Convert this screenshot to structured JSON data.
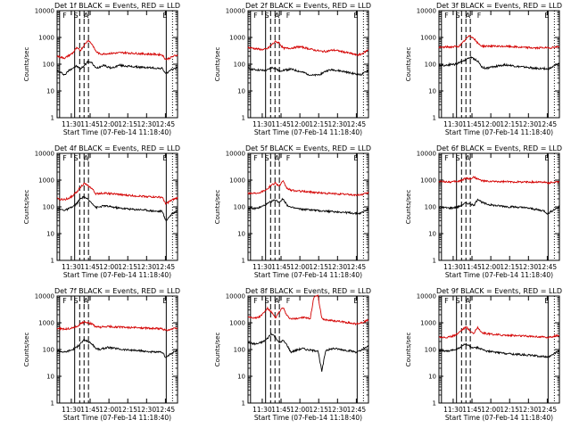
{
  "chart_data": [
    {
      "type": "line",
      "title": "Det 1f BLACK = Events, RED = LLD",
      "xlabel": "Start Time (07-Feb-14 11:18:40)",
      "ylabel": "Counts/sec",
      "yscale": "log",
      "ylim": [
        1,
        10000
      ],
      "ytick_labels": [
        "1",
        "10",
        "100",
        "1000",
        "10000"
      ],
      "xticks": [
        "11:30",
        "11:45",
        "12:00",
        "12:15",
        "12:30",
        "12:45"
      ],
      "series": [
        {
          "color": "#000000",
          "values": [
            55,
            48,
            40,
            58,
            72,
            85,
            65,
            90,
            130,
            110,
            70,
            80,
            95,
            78,
            72,
            80,
            92,
            88,
            85,
            82,
            80,
            78,
            76,
            75,
            74,
            72,
            70,
            70,
            45,
            55,
            68,
            75
          ]
        },
        {
          "color": "#d40000",
          "values": [
            200,
            180,
            170,
            210,
            260,
            400,
            330,
            520,
            800,
            560,
            300,
            240,
            245,
            250,
            255,
            260,
            265,
            270,
            265,
            260,
            255,
            250,
            245,
            240,
            238,
            235,
            230,
            225,
            150,
            170,
            200,
            220
          ]
        }
      ],
      "flags": [
        "F",
        "S",
        "A",
        "E"
      ]
    },
    {
      "type": "line",
      "title": "Det 2f BLACK = Events, RED = LLD",
      "xlabel": "Start Time (07-Feb-14 11:18:40)",
      "ylabel": "Counts/sec",
      "yscale": "log",
      "ylim": [
        1,
        10000
      ],
      "ytick_labels": [
        "1",
        "10",
        "100",
        "1000",
        "10000"
      ],
      "xticks": [
        "11:30",
        "11:45",
        "12:00",
        "12:15",
        "12:30",
        "12:45"
      ],
      "series": [
        {
          "color": "#000000",
          "values": [
            70,
            65,
            62,
            60,
            58,
            60,
            75,
            70,
            55,
            60,
            62,
            65,
            60,
            55,
            50,
            45,
            40,
            38,
            40,
            45,
            55,
            60,
            62,
            58,
            55,
            52,
            48,
            45,
            42,
            40,
            48,
            60
          ]
        },
        {
          "color": "#d40000",
          "values": [
            420,
            400,
            380,
            360,
            350,
            380,
            520,
            700,
            640,
            400,
            390,
            400,
            420,
            450,
            430,
            400,
            370,
            340,
            320,
            300,
            300,
            320,
            340,
            320,
            300,
            280,
            260,
            240,
            220,
            230,
            280,
            350
          ]
        }
      ],
      "flags": [
        "F",
        "S",
        "A",
        "F",
        "E"
      ]
    },
    {
      "type": "line",
      "title": "Det 3f BLACK = Events, RED = LLD",
      "xlabel": "Start Time (07-Feb-14 11:18:40)",
      "ylabel": "Counts/sec",
      "yscale": "log",
      "ylim": [
        1,
        10000
      ],
      "ytick_labels": [
        "1",
        "10",
        "100",
        "1000",
        "10000"
      ],
      "xticks": [
        "11:30",
        "11:45",
        "12:00",
        "12:15",
        "12:30",
        "12:45"
      ],
      "series": [
        {
          "color": "#000000",
          "values": [
            95,
            90,
            92,
            100,
            98,
            110,
            130,
            150,
            180,
            160,
            130,
            80,
            70,
            75,
            80,
            85,
            90,
            95,
            92,
            88,
            82,
            80,
            78,
            75,
            72,
            70,
            68,
            70,
            65,
            75,
            90,
            110
          ]
        },
        {
          "color": "#d40000",
          "values": [
            420,
            430,
            440,
            440,
            450,
            460,
            600,
            900,
            1200,
            900,
            600,
            480,
            470,
            480,
            470,
            460,
            460,
            470,
            460,
            450,
            440,
            430,
            420,
            420,
            410,
            400,
            410,
            420,
            400,
            420,
            440,
            460
          ]
        }
      ],
      "flags": [
        "F",
        "S",
        "A",
        "F",
        "E"
      ]
    },
    {
      "type": "line",
      "title": "Det 4f BLACK = Events, RED = LLD",
      "xlabel": "Start Time (07-Feb-14 11:18:40)",
      "ylabel": "Counts/sec",
      "yscale": "log",
      "ylim": [
        1,
        10000
      ],
      "ytick_labels": [
        "1",
        "10",
        "100",
        "1000",
        "10000"
      ],
      "xticks": [
        "11:30",
        "11:45",
        "12:00",
        "12:15",
        "12:30",
        "12:45"
      ],
      "series": [
        {
          "color": "#000000",
          "values": [
            85,
            80,
            75,
            85,
            100,
            130,
            200,
            240,
            180,
            140,
            95,
            100,
            110,
            105,
            100,
            95,
            90,
            88,
            85,
            82,
            80,
            80,
            78,
            75,
            72,
            70,
            68,
            70,
            30,
            45,
            60,
            75
          ]
        },
        {
          "color": "#d40000",
          "values": [
            200,
            190,
            190,
            210,
            260,
            350,
            550,
            750,
            600,
            480,
            300,
            320,
            330,
            320,
            310,
            300,
            290,
            280,
            270,
            265,
            260,
            255,
            250,
            245,
            240,
            235,
            230,
            230,
            130,
            160,
            190,
            220
          ]
        }
      ],
      "flags": [
        "F",
        "S",
        "A",
        "E"
      ]
    },
    {
      "type": "line",
      "title": "Det 5f BLACK = Events, RED = LLD",
      "xlabel": "Start Time (07-Feb-14 11:18:40)",
      "ylabel": "Counts/sec",
      "yscale": "log",
      "ylim": [
        1,
        10000
      ],
      "ytick_labels": [
        "1",
        "10",
        "100",
        "1000",
        "10000"
      ],
      "xticks": [
        "11:30",
        "11:45",
        "12:00",
        "12:15",
        "12:30",
        "12:45"
      ],
      "series": [
        {
          "color": "#000000",
          "values": [
            90,
            85,
            88,
            95,
            110,
            130,
            160,
            180,
            150,
            200,
            120,
            95,
            90,
            85,
            80,
            80,
            78,
            75,
            72,
            70,
            70,
            68,
            66,
            65,
            64,
            62,
            60,
            58,
            56,
            58,
            70,
            85
          ]
        },
        {
          "color": "#d40000",
          "values": [
            330,
            320,
            330,
            350,
            400,
            480,
            650,
            800,
            600,
            900,
            500,
            420,
            400,
            390,
            380,
            370,
            360,
            350,
            340,
            330,
            320,
            315,
            310,
            305,
            300,
            295,
            290,
            280,
            275,
            285,
            310,
            330
          ]
        }
      ],
      "flags": [
        "F",
        "S",
        "A",
        "F",
        "E"
      ]
    },
    {
      "type": "line",
      "title": "Det 6f BLACK = Events, RED = LLD",
      "xlabel": "Start Time (07-Feb-14 11:18:40)",
      "ylabel": "Counts/sec",
      "yscale": "log",
      "ylim": [
        1,
        10000
      ],
      "ytick_labels": [
        "1",
        "10",
        "100",
        "1000",
        "10000"
      ],
      "xticks": [
        "11:30",
        "11:45",
        "12:00",
        "12:15",
        "12:30",
        "12:45"
      ],
      "series": [
        {
          "color": "#000000",
          "values": [
            100,
            95,
            92,
            90,
            95,
            100,
            120,
            140,
            130,
            110,
            200,
            150,
            130,
            120,
            115,
            110,
            108,
            105,
            100,
            100,
            98,
            95,
            92,
            90,
            85,
            80,
            75,
            72,
            55,
            70,
            85,
            100
          ]
        },
        {
          "color": "#d40000",
          "values": [
            900,
            880,
            870,
            860,
            870,
            900,
            1000,
            1200,
            1100,
            1300,
            1100,
            950,
            900,
            890,
            880,
            880,
            870,
            870,
            860,
            860,
            860,
            860,
            850,
            850,
            850,
            850,
            850,
            840,
            780,
            820,
            840,
            850
          ]
        }
      ],
      "flags": [
        "F",
        "S",
        "A",
        "E"
      ]
    },
    {
      "type": "line",
      "title": "Det 7f BLACK = Events, RED = LLD",
      "xlabel": "Start Time (07-Feb-14 11:18:40)",
      "ylabel": "Counts/sec",
      "yscale": "log",
      "ylim": [
        1,
        10000
      ],
      "ytick_labels": [
        "1",
        "10",
        "100",
        "1000",
        "10000"
      ],
      "xticks": [
        "11:30",
        "11:45",
        "12:00",
        "12:15",
        "12:30",
        "12:45"
      ],
      "series": [
        {
          "color": "#000000",
          "values": [
            90,
            85,
            80,
            90,
            100,
            120,
            170,
            230,
            200,
            160,
            110,
            100,
            110,
            120,
            115,
            110,
            105,
            100,
            98,
            95,
            92,
            90,
            88,
            85,
            82,
            80,
            78,
            80,
            50,
            65,
            80,
            95
          ]
        },
        {
          "color": "#d40000",
          "values": [
            620,
            600,
            580,
            600,
            650,
            720,
            900,
            1100,
            1000,
            900,
            700,
            680,
            700,
            720,
            710,
            700,
            690,
            680,
            670,
            660,
            660,
            650,
            640,
            630,
            620,
            610,
            610,
            600,
            520,
            560,
            600,
            620
          ]
        }
      ],
      "flags": [
        "F",
        "S",
        "A",
        "E"
      ]
    },
    {
      "type": "line",
      "title": "Det 8f BLACK = Events, RED = LLD",
      "xlabel": "Start Time (07-Feb-14 11:18:40)",
      "ylabel": "Counts/sec",
      "yscale": "log",
      "ylim": [
        1,
        10000
      ],
      "ytick_labels": [
        "1",
        "10",
        "100",
        "1000",
        "10000"
      ],
      "xticks": [
        "11:30",
        "11:45",
        "12:00",
        "12:15",
        "12:30",
        "12:45"
      ],
      "series": [
        {
          "color": "#000000",
          "values": [
            180,
            170,
            160,
            175,
            200,
            260,
            400,
            300,
            180,
            220,
            150,
            80,
            90,
            100,
            110,
            100,
            95,
            90,
            92,
            15,
            95,
            100,
            110,
            105,
            100,
            95,
            90,
            85,
            80,
            90,
            110,
            140
          ]
        },
        {
          "color": "#d40000",
          "values": [
            1700,
            1600,
            1500,
            1700,
            2300,
            3500,
            2500,
            1500,
            2500,
            3800,
            1800,
            1400,
            1400,
            1500,
            1600,
            1500,
            1400,
            10000,
            10000,
            1400,
            1300,
            1250,
            1200,
            1150,
            1100,
            1050,
            1000,
            950,
            900,
            1000,
            1100,
            1300
          ]
        }
      ],
      "flags": [
        "F",
        "S",
        "A",
        "F",
        "E"
      ]
    },
    {
      "type": "line",
      "title": "Det 9f BLACK = Events, RED = LLD",
      "xlabel": "Start Time (07-Feb-14 11:18:40)",
      "ylabel": "Counts/sec",
      "yscale": "log",
      "ylim": [
        1,
        10000
      ],
      "ytick_labels": [
        "1",
        "10",
        "100",
        "1000",
        "10000"
      ],
      "xticks": [
        "11:30",
        "11:45",
        "12:00",
        "12:15",
        "12:30",
        "12:45"
      ],
      "series": [
        {
          "color": "#000000",
          "values": [
            95,
            90,
            85,
            90,
            100,
            110,
            140,
            160,
            130,
            110,
            120,
            100,
            90,
            85,
            80,
            78,
            75,
            72,
            70,
            68,
            66,
            65,
            64,
            62,
            60,
            58,
            56,
            55,
            50,
            60,
            75,
            90
          ]
        },
        {
          "color": "#d40000",
          "values": [
            300,
            290,
            280,
            300,
            340,
            420,
            560,
            700,
            500,
            400,
            700,
            420,
            400,
            380,
            370,
            360,
            350,
            345,
            340,
            335,
            330,
            325,
            320,
            315,
            310,
            305,
            300,
            295,
            280,
            300,
            320,
            340
          ]
        }
      ],
      "flags": [
        "F",
        "S",
        "A",
        "E"
      ]
    }
  ]
}
